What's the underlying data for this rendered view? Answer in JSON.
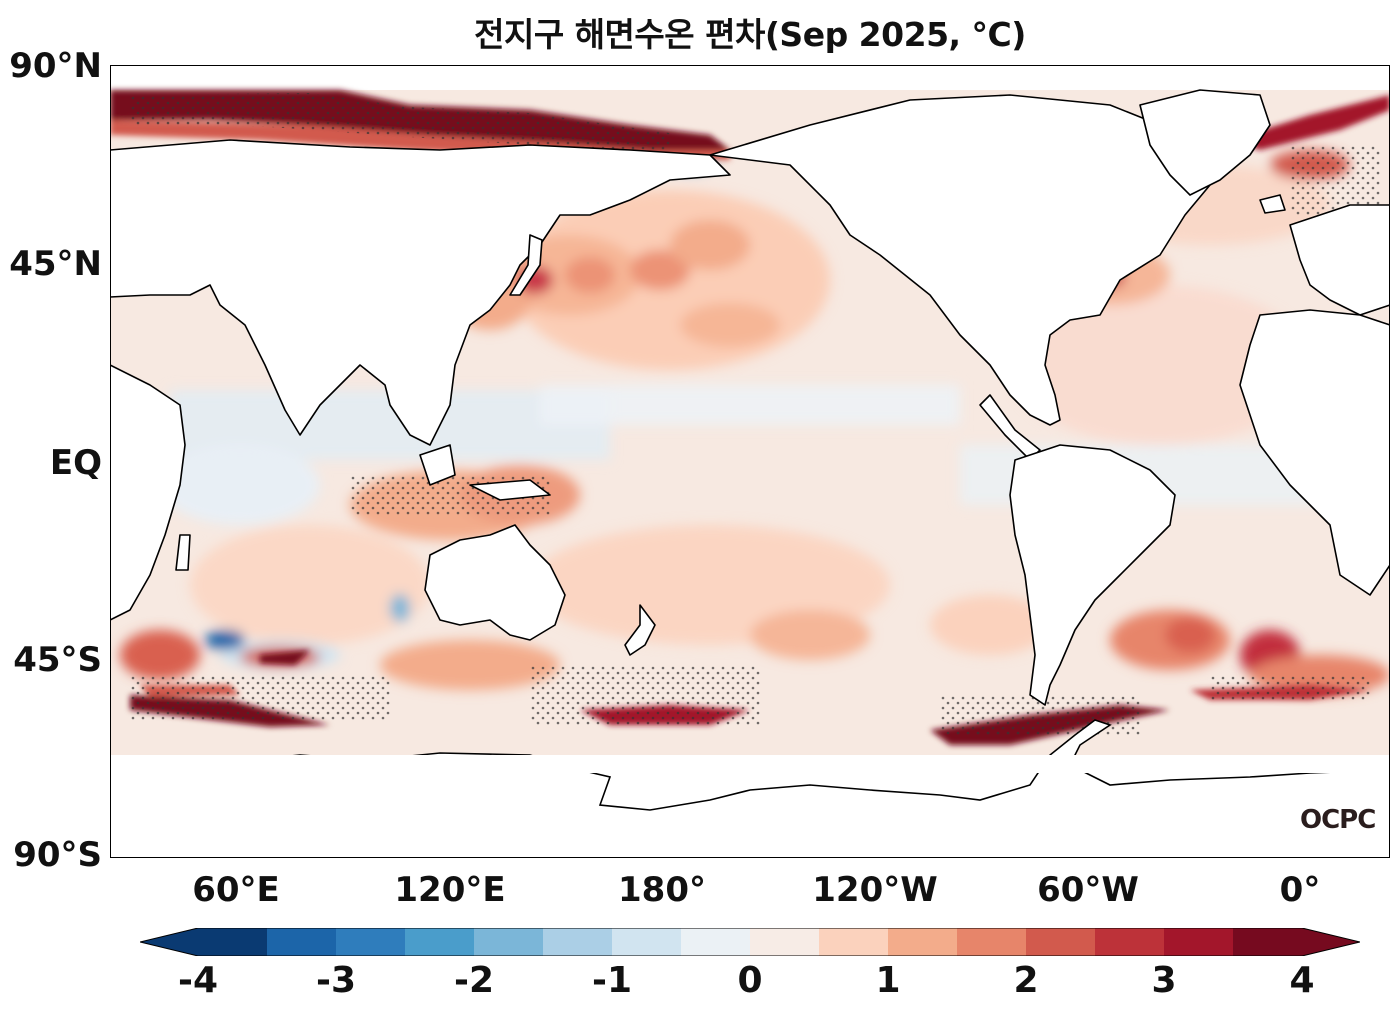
{
  "title": "전지구 해면수온 편차(Sep 2025, °C)",
  "logo": "OCPC",
  "map": {
    "type": "global sea surface temperature anomaly map",
    "projection": "equirectangular, centered on 180°",
    "lat_ticks": [
      "90°N",
      "45°N",
      "EQ",
      "45°S",
      "90°S"
    ],
    "lon_ticks": [
      "60°E",
      "120°E",
      "180°",
      "120°W",
      "60°W",
      "0°"
    ],
    "stippling": "dots mark significant anomalies",
    "colors": {
      "land": "#ffffff",
      "coastline": "#000000",
      "ocean_base": "#f7e9e1"
    }
  },
  "colorbar": {
    "ticks": [
      "-4",
      "-3",
      "-2",
      "-1",
      "0",
      "1",
      "2",
      "3",
      "4"
    ],
    "extend": "both",
    "colors": [
      "#0a3a72",
      "#1c65a9",
      "#2f7dbc",
      "#4a9dcb",
      "#7bb6d8",
      "#abcfe6",
      "#d1e4f0",
      "#ebf1f5",
      "#f7ece6",
      "#fbd2bd",
      "#f3ac8b",
      "#e7856a",
      "#d25a4d",
      "#bd3239",
      "#a3162b",
      "#760a1f"
    ]
  }
}
